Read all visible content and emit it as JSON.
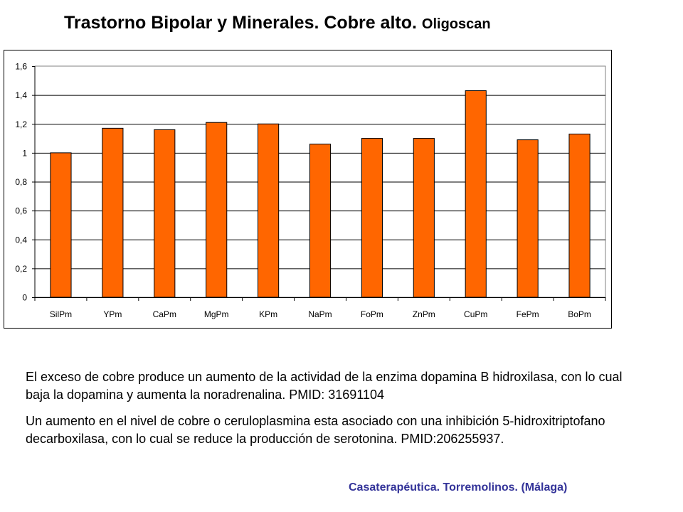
{
  "title": {
    "main": "Trastorno Bipolar y Minerales. Cobre alto.",
    "sub": "Oligoscan"
  },
  "chart_data": {
    "type": "bar",
    "title": "Trastorno Bipolar y Minerales. Cobre alto. Oligoscan",
    "categories": [
      "SilPm",
      "YPm",
      "CaPm",
      "MgPm",
      "KPm",
      "NaPm",
      "FoPm",
      "ZnPm",
      "CuPm",
      "FePm",
      "BoPm"
    ],
    "values": [
      1.0,
      1.17,
      1.16,
      1.21,
      1.2,
      1.06,
      1.1,
      1.1,
      1.43,
      1.09,
      1.13
    ],
    "yticks": [
      "0",
      "0,2",
      "0,4",
      "0,6",
      "0,8",
      "1",
      "1,2",
      "1,4",
      "1,6"
    ],
    "ylim": [
      0,
      1.6
    ],
    "xlabel": "",
    "ylabel": "",
    "grid": true,
    "legend": "none",
    "bar_color": "#FF6600"
  },
  "text": {
    "p1": "El exceso de cobre produce un aumento de la actividad de la enzima dopamina B hidroxilasa, con lo cual baja la dopamina y aumenta la noradrenalina. PMID: 31691104",
    "p2": "Un aumento en el nivel de cobre o ceruloplasmina esta asociado con una inhibición 5-hidroxitriptofano  decarboxilasa, con lo cual se reduce la producción de serotonina. PMID:206255937."
  },
  "footer": "Casaterapéutica. Torremolinos. (Málaga)"
}
